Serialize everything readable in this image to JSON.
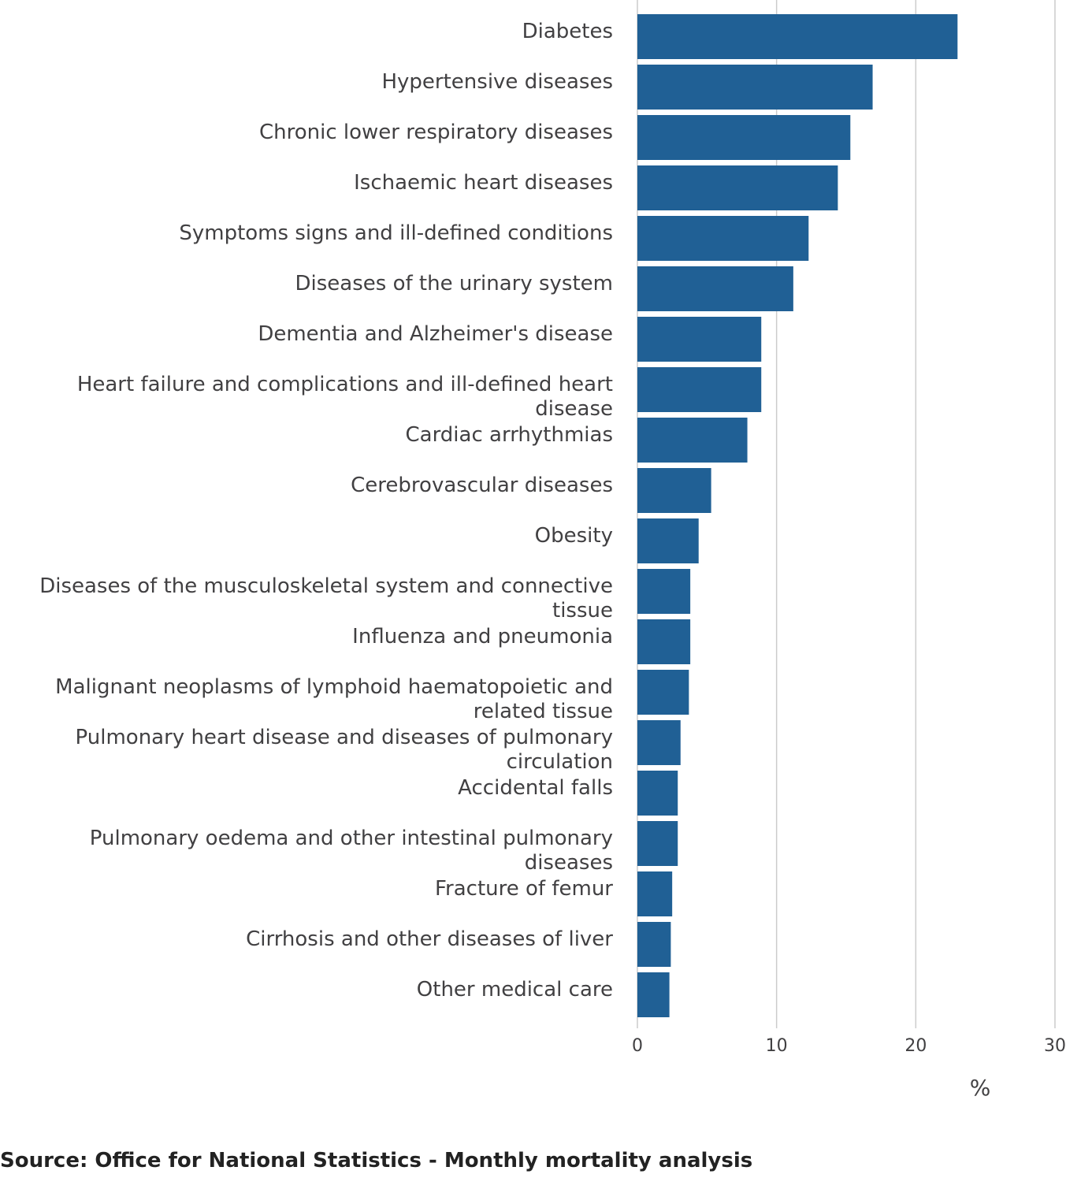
{
  "chart_data": {
    "type": "bar",
    "orientation": "horizontal",
    "categories": [
      "Diabetes",
      "Hypertensive diseases",
      "Chronic lower respiratory diseases",
      "Ischaemic heart diseases",
      "Symptoms signs and ill-defined conditions",
      "Diseases of the urinary system",
      "Dementia and Alzheimer's disease",
      "Heart failure and complications and ill-defined heart disease",
      "Cardiac arrhythmias",
      "Cerebrovascular diseases",
      "Obesity",
      "Diseases of the musculoskeletal system and connective tissue",
      "Influenza and pneumonia",
      "Malignant neoplasms of lymphoid haematopoietic and related tissue",
      "Pulmonary heart disease and diseases of pulmonary circulation",
      "Accidental falls",
      "Pulmonary oedema and other intestinal pulmonary diseases",
      "Fracture of femur",
      "Cirrhosis and other diseases of liver",
      "Other medical care"
    ],
    "values": [
      23.0,
      16.9,
      15.3,
      14.4,
      12.3,
      11.2,
      8.9,
      8.9,
      7.9,
      5.3,
      4.4,
      3.8,
      3.8,
      3.7,
      3.1,
      2.9,
      2.9,
      2.5,
      2.4,
      2.3
    ],
    "xlim": [
      0,
      30
    ],
    "xticks": [
      0,
      10,
      20,
      30
    ],
    "xlabel": "%",
    "grid": true,
    "bar_color": "#206095",
    "grid_color": "#cccccc"
  },
  "source": "Source: Office for National Statistics - Monthly mortality analysis"
}
